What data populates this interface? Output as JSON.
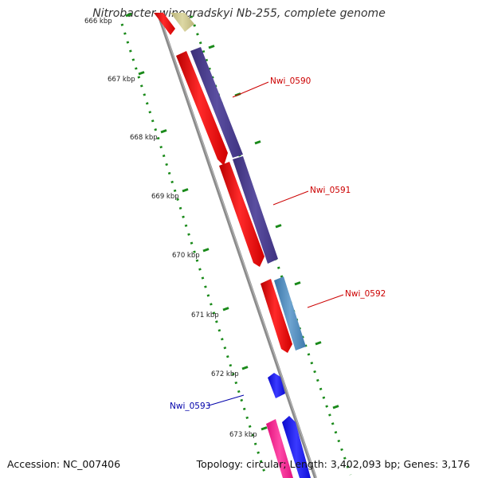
{
  "title": "Nitrobacter winogradskyi Nb-255, complete genome",
  "footer": {
    "accession": "Accession: NC_007406",
    "topology": "Topology: circular; Length: 3,402,093 bp; Genes: 3,176"
  },
  "ticks": [
    {
      "label": "666 kbp"
    },
    {
      "label": "667 kbp"
    },
    {
      "label": "668 kbp"
    },
    {
      "label": "669 kbp"
    },
    {
      "label": "670 kbp"
    },
    {
      "label": "671 kbp"
    },
    {
      "label": "672 kbp"
    },
    {
      "label": "673 kbp"
    }
  ],
  "genes": [
    {
      "label": "Nwi_0590",
      "color": "#cc0000"
    },
    {
      "label": "Nwi_0591",
      "color": "#cc0000"
    },
    {
      "label": "Nwi_0592",
      "color": "#cc0000"
    },
    {
      "label": "Nwi_0593",
      "color": "#0000aa"
    }
  ],
  "colors": {
    "backbone": "#8a8a8a",
    "dots": "#1a8a1a",
    "red_feature": "#ff1a1a",
    "purple_feature": "#4a3d8f",
    "steel_feature": "#4a86b8",
    "blue_feature": "#1515ee",
    "pink_feature": "#ff1a8c",
    "khaki_feature": "#c9c48a"
  }
}
